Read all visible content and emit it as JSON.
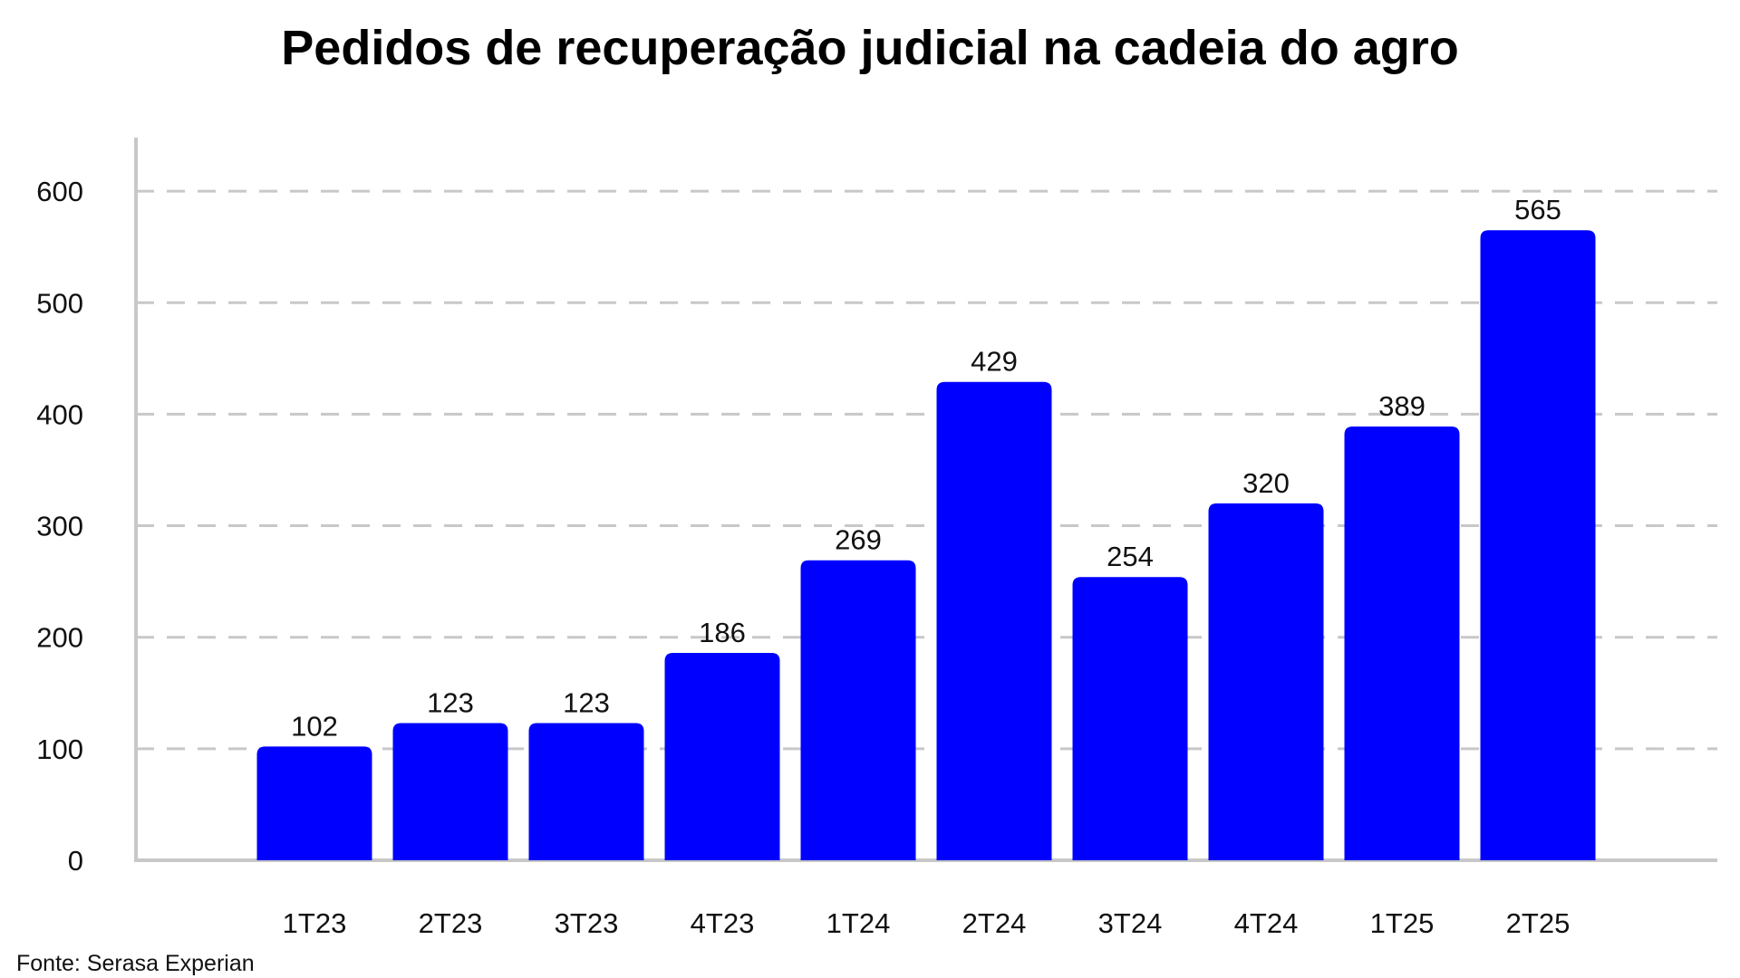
{
  "chart_data": {
    "type": "bar",
    "title": "Pedidos de recuperação judicial na cadeia do agro",
    "categories": [
      "1T23",
      "2T23",
      "3T23",
      "4T23",
      "1T24",
      "2T24",
      "3T24",
      "4T24",
      "1T25",
      "2T25"
    ],
    "values": [
      102,
      123,
      123,
      186,
      269,
      429,
      254,
      320,
      389,
      565
    ],
    "value_labels": [
      "102",
      "123",
      "123",
      "186",
      "269",
      "429",
      "254",
      "320",
      "389",
      "565"
    ],
    "y_ticks": [
      0,
      100,
      200,
      300,
      400,
      500,
      600
    ],
    "y_tick_labels": [
      "0",
      "100",
      "200",
      "300",
      "400",
      "500",
      "600"
    ],
    "ylim": [
      0,
      648
    ],
    "xlabel": "",
    "ylabel": "",
    "grid": true,
    "bar_color": "#0000FF",
    "grid_color": "#C8C8C8",
    "axis_color": "#C8C8C8"
  },
  "source": "Fonte: Serasa Experian"
}
